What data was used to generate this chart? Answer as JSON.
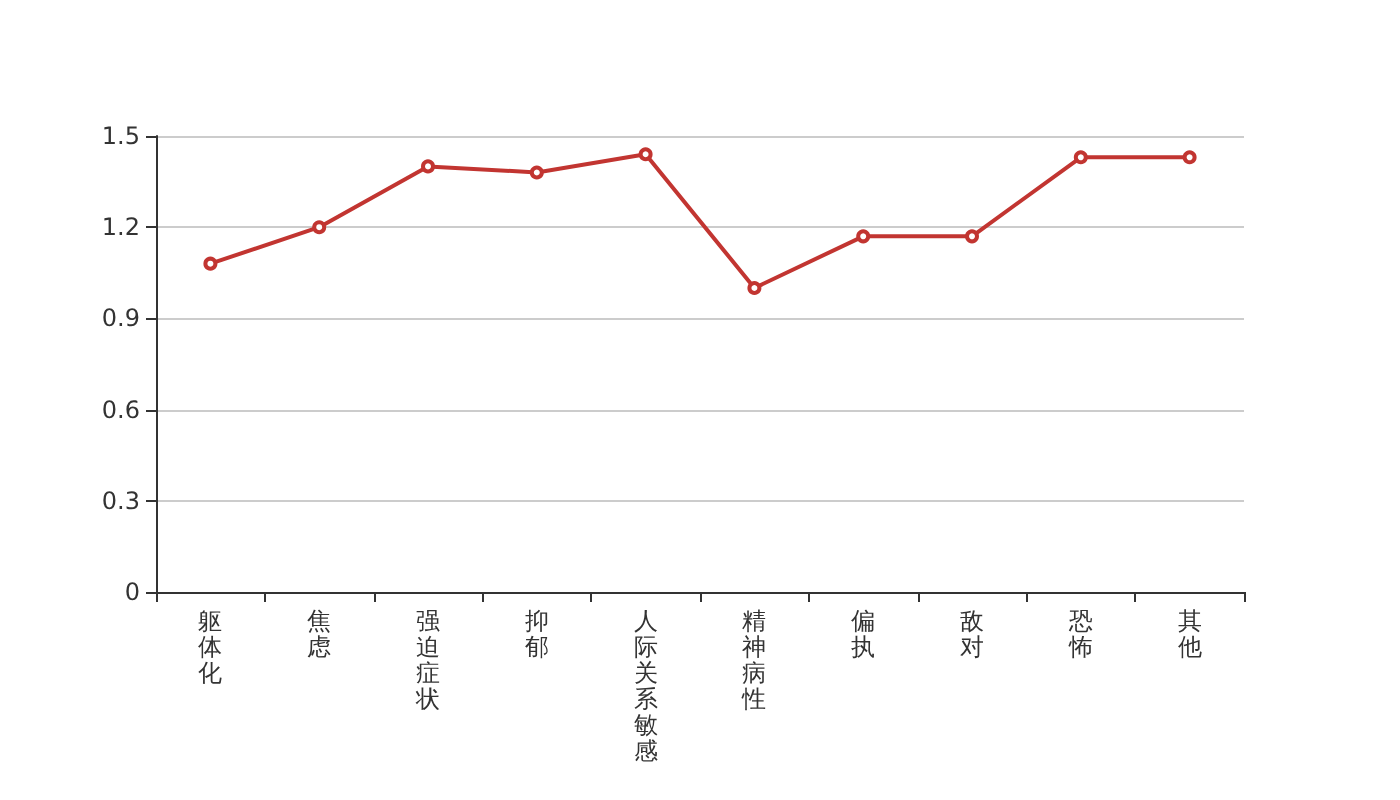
{
  "chart_data": {
    "type": "line",
    "categories": [
      "躯体化",
      "焦虑",
      "强迫症状",
      "抑郁",
      "人际关系敏感",
      "精神病性",
      "偏执",
      "敌对",
      "恐怖",
      "其他"
    ],
    "series": [
      {
        "color": "#c23531",
        "values": [
          1.08,
          1.2,
          1.4,
          1.38,
          1.44,
          1.0,
          1.17,
          1.17,
          1.43,
          1.43
        ]
      }
    ],
    "ylim": [
      0,
      1.5
    ],
    "yticks": [
      0,
      0.3,
      0.6,
      0.9,
      1.2,
      1.5
    ],
    "grid": "y",
    "marker": "circle",
    "line_style": "solid"
  }
}
